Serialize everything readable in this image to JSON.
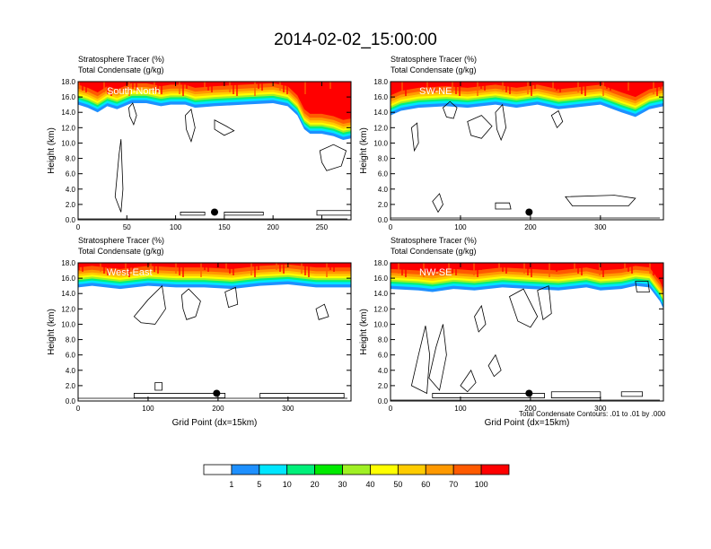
{
  "figure": {
    "title": "2014-02-02_15:00:00",
    "shade_label": "Stratosphere Tracer   (%)",
    "contour_label": "Total Condensate   (g/kg)",
    "contour_info": "Total Condensate Contours: .01 to .01 by .000"
  },
  "chart_data": [
    {
      "type": "heatmap",
      "name": "South-North",
      "title": "South-North",
      "xlabel": "",
      "ylabel": "Height (km)",
      "xlim": [
        0,
        280
      ],
      "ylim": [
        0,
        18
      ],
      "xticks": [
        0,
        50,
        100,
        150,
        200,
        250
      ],
      "yticks": [
        "0.0",
        "2.0",
        "4.0",
        "6.0",
        "8.0",
        "10.0",
        "12.0",
        "14.0",
        "16.0",
        "18.0"
      ],
      "marker_x": 140,
      "marker_y": 1.0,
      "tropopause_km": [
        [
          0,
          15.6
        ],
        [
          10,
          15.2
        ],
        [
          20,
          14.6
        ],
        [
          30,
          15.4
        ],
        [
          40,
          15.0
        ],
        [
          55,
          15.8
        ],
        [
          70,
          15.8
        ],
        [
          85,
          15.4
        ],
        [
          95,
          15.6
        ],
        [
          110,
          15.6
        ],
        [
          120,
          15.2
        ],
        [
          140,
          15.4
        ],
        [
          170,
          15.6
        ],
        [
          200,
          15.8
        ],
        [
          215,
          15.4
        ],
        [
          225,
          14.2
        ],
        [
          232,
          12.4
        ],
        [
          238,
          11.8
        ],
        [
          250,
          11.8
        ],
        [
          262,
          11.5
        ],
        [
          272,
          11.0
        ],
        [
          280,
          11.2
        ]
      ],
      "condensate_contours": [
        [
          [
            38,
            3.0
          ],
          [
            42,
            8.5
          ],
          [
            44,
            10.5
          ],
          [
            46,
            4.0
          ],
          [
            44,
            1.0
          ]
        ],
        [
          [
            52,
            14.6
          ],
          [
            56,
            15.2
          ],
          [
            60,
            13.6
          ],
          [
            57,
            12.4
          ],
          [
            53,
            13.5
          ]
        ],
        [
          [
            110,
            13.6
          ],
          [
            116,
            14.4
          ],
          [
            120,
            12.0
          ],
          [
            116,
            10.2
          ],
          [
            111,
            11.8
          ]
        ],
        [
          [
            140,
            13.0
          ],
          [
            152,
            12.2
          ],
          [
            160,
            11.6
          ],
          [
            150,
            11.0
          ],
          [
            140,
            11.8
          ]
        ],
        [
          [
            248,
            9.0
          ],
          [
            262,
            9.8
          ],
          [
            275,
            9.0
          ],
          [
            270,
            7.0
          ],
          [
            255,
            6.4
          ],
          [
            250,
            7.5
          ]
        ],
        [
          [
            105,
            0.6
          ],
          [
            130,
            0.6
          ],
          [
            130,
            1.0
          ],
          [
            105,
            1.0
          ]
        ],
        [
          [
            150,
            0.6
          ],
          [
            190,
            0.6
          ],
          [
            190,
            1.0
          ],
          [
            150,
            1.0
          ]
        ],
        [
          [
            245,
            0.6
          ],
          [
            280,
            0.6
          ],
          [
            280,
            1.2
          ],
          [
            245,
            1.2
          ]
        ]
      ]
    },
    {
      "type": "heatmap",
      "name": "SW-NE",
      "title": "SW-NE",
      "xlabel": "",
      "ylabel": "Height (km)",
      "xlim": [
        0,
        390
      ],
      "ylim": [
        0,
        18
      ],
      "xticks": [
        0,
        100,
        200,
        300
      ],
      "yticks": [
        "0.0",
        "2.0",
        "4.0",
        "6.0",
        "8.0",
        "10.0",
        "12.0",
        "14.0",
        "16.0",
        "18.0"
      ],
      "marker_x": 198,
      "marker_y": 1.0,
      "tropopause_km": [
        [
          0,
          14.2
        ],
        [
          15,
          14.8
        ],
        [
          40,
          15.2
        ],
        [
          80,
          15.4
        ],
        [
          110,
          15.2
        ],
        [
          150,
          15.6
        ],
        [
          180,
          15.2
        ],
        [
          210,
          15.6
        ],
        [
          240,
          15.0
        ],
        [
          260,
          15.2
        ],
        [
          300,
          15.6
        ],
        [
          330,
          14.6
        ],
        [
          350,
          14.0
        ],
        [
          370,
          15.0
        ],
        [
          390,
          15.4
        ]
      ],
      "condensate_contours": [
        [
          [
            30,
            12.0
          ],
          [
            38,
            12.6
          ],
          [
            40,
            10.0
          ],
          [
            34,
            9.0
          ]
        ],
        [
          [
            75,
            14.6
          ],
          [
            85,
            15.4
          ],
          [
            95,
            14.6
          ],
          [
            90,
            13.2
          ],
          [
            80,
            13.4
          ]
        ],
        [
          [
            110,
            12.8
          ],
          [
            130,
            13.6
          ],
          [
            145,
            12.2
          ],
          [
            130,
            10.6
          ],
          [
            115,
            11.0
          ]
        ],
        [
          [
            150,
            14.0
          ],
          [
            160,
            15.0
          ],
          [
            165,
            12.0
          ],
          [
            158,
            10.4
          ],
          [
            152,
            11.8
          ]
        ],
        [
          [
            230,
            13.6
          ],
          [
            240,
            14.2
          ],
          [
            246,
            12.8
          ],
          [
            238,
            12.0
          ]
        ],
        [
          [
            250,
            3.0
          ],
          [
            320,
            3.2
          ],
          [
            350,
            2.8
          ],
          [
            340,
            1.8
          ],
          [
            260,
            1.8
          ]
        ],
        [
          [
            150,
            2.2
          ],
          [
            170,
            2.2
          ],
          [
            172,
            1.4
          ],
          [
            150,
            1.4
          ]
        ],
        [
          [
            60,
            2.4
          ],
          [
            70,
            3.4
          ],
          [
            75,
            2.0
          ],
          [
            68,
            1.0
          ]
        ]
      ]
    },
    {
      "type": "heatmap",
      "name": "West-East",
      "title": "West-East",
      "xlabel": "Grid Point (dx=15km)",
      "ylabel": "Height (km)",
      "xlim": [
        0,
        390
      ],
      "ylim": [
        0,
        18
      ],
      "xticks": [
        0,
        100,
        200,
        300
      ],
      "yticks": [
        "0.0",
        "2.0",
        "4.0",
        "6.0",
        "8.0",
        "10.0",
        "12.0",
        "14.0",
        "16.0",
        "18.0"
      ],
      "marker_x": 198,
      "marker_y": 1.0,
      "tropopause_km": [
        [
          0,
          15.4
        ],
        [
          20,
          15.6
        ],
        [
          60,
          15.2
        ],
        [
          100,
          15.6
        ],
        [
          140,
          15.4
        ],
        [
          180,
          15.4
        ],
        [
          220,
          15.2
        ],
        [
          260,
          15.6
        ],
        [
          300,
          15.8
        ],
        [
          340,
          15.4
        ],
        [
          390,
          15.4
        ]
      ],
      "condensate_contours": [
        [
          [
            80,
            11.0
          ],
          [
            100,
            13.2
          ],
          [
            120,
            15.0
          ],
          [
            125,
            12.0
          ],
          [
            110,
            10.0
          ],
          [
            90,
            10.2
          ]
        ],
        [
          [
            148,
            13.8
          ],
          [
            158,
            14.6
          ],
          [
            175,
            13.0
          ],
          [
            168,
            11.0
          ],
          [
            155,
            10.6
          ],
          [
            150,
            12.0
          ]
        ],
        [
          [
            210,
            14.2
          ],
          [
            225,
            14.8
          ],
          [
            228,
            12.6
          ],
          [
            215,
            12.2
          ]
        ],
        [
          [
            340,
            12.0
          ],
          [
            352,
            12.6
          ],
          [
            358,
            11.0
          ],
          [
            344,
            10.6
          ]
        ],
        [
          [
            80,
            0.4
          ],
          [
            210,
            0.4
          ],
          [
            210,
            1.0
          ],
          [
            80,
            1.0
          ]
        ],
        [
          [
            260,
            0.4
          ],
          [
            380,
            0.4
          ],
          [
            380,
            1.0
          ],
          [
            260,
            1.0
          ]
        ],
        [
          [
            110,
            1.4
          ],
          [
            120,
            1.4
          ],
          [
            120,
            2.4
          ],
          [
            110,
            2.4
          ]
        ]
      ]
    },
    {
      "type": "heatmap",
      "name": "NW-SE",
      "title": "NW-SE",
      "xlabel": "Grid Point (dx=15km)",
      "ylabel": "Height (km)",
      "xlim": [
        0,
        390
      ],
      "ylim": [
        0,
        18
      ],
      "xticks": [
        0,
        100,
        200,
        300
      ],
      "yticks": [
        "0.0",
        "2.0",
        "4.0",
        "6.0",
        "8.0",
        "10.0",
        "12.0",
        "14.0",
        "16.0",
        "18.0"
      ],
      "marker_x": 198,
      "marker_y": 1.0,
      "tropopause_km": [
        [
          0,
          15.2
        ],
        [
          40,
          15.0
        ],
        [
          60,
          14.8
        ],
        [
          90,
          15.2
        ],
        [
          120,
          15.0
        ],
        [
          160,
          15.4
        ],
        [
          200,
          15.2
        ],
        [
          240,
          15.0
        ],
        [
          280,
          15.4
        ],
        [
          300,
          15.0
        ],
        [
          330,
          15.2
        ],
        [
          350,
          15.6
        ],
        [
          370,
          15.4
        ],
        [
          385,
          13.6
        ],
        [
          390,
          12.6
        ]
      ],
      "condensate_contours": [
        [
          [
            30,
            2.0
          ],
          [
            40,
            6.0
          ],
          [
            50,
            9.8
          ],
          [
            56,
            6.0
          ],
          [
            52,
            1.0
          ]
        ],
        [
          [
            55,
            3.0
          ],
          [
            65,
            7.0
          ],
          [
            75,
            10.0
          ],
          [
            80,
            6.0
          ],
          [
            70,
            1.4
          ]
        ],
        [
          [
            100,
            2.0
          ],
          [
            115,
            4.0
          ],
          [
            122,
            2.4
          ],
          [
            110,
            1.2
          ]
        ],
        [
          [
            140,
            4.6
          ],
          [
            150,
            6.0
          ],
          [
            158,
            4.0
          ],
          [
            148,
            3.2
          ]
        ],
        [
          [
            170,
            13.6
          ],
          [
            190,
            14.6
          ],
          [
            210,
            11.0
          ],
          [
            200,
            9.6
          ],
          [
            182,
            10.4
          ]
        ],
        [
          [
            210,
            14.4
          ],
          [
            226,
            15.0
          ],
          [
            230,
            11.4
          ],
          [
            218,
            10.6
          ]
        ],
        [
          [
            120,
            11.0
          ],
          [
            130,
            12.4
          ],
          [
            136,
            10.0
          ],
          [
            126,
            9.0
          ]
        ],
        [
          [
            60,
            0.4
          ],
          [
            220,
            0.4
          ],
          [
            220,
            1.0
          ],
          [
            60,
            1.0
          ]
        ],
        [
          [
            230,
            0.4
          ],
          [
            300,
            0.4
          ],
          [
            300,
            1.2
          ],
          [
            230,
            1.2
          ]
        ],
        [
          [
            330,
            0.6
          ],
          [
            360,
            0.6
          ],
          [
            360,
            1.2
          ],
          [
            330,
            1.2
          ]
        ],
        [
          [
            350,
            15.6
          ],
          [
            368,
            15.6
          ],
          [
            370,
            14.2
          ],
          [
            352,
            14.2
          ]
        ]
      ]
    }
  ],
  "colorbar": {
    "labels": [
      "1",
      "5",
      "10",
      "20",
      "30",
      "40",
      "50",
      "60",
      "70",
      "100"
    ],
    "colors": [
      "#ffffff",
      "#1e90ff",
      "#00e6ff",
      "#00f07a",
      "#00ea00",
      "#a0f024",
      "#ffff00",
      "#ffcc00",
      "#ff9900",
      "#ff5a00",
      "#ff0000"
    ]
  }
}
